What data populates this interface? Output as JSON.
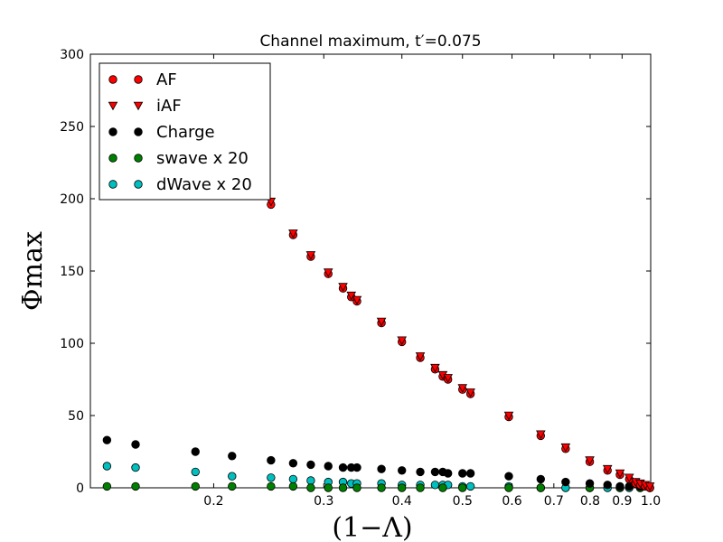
{
  "chart_data": {
    "type": "scatter",
    "title": "Channel maximum, t′=0.075",
    "xlabel": "(1−Λ)",
    "ylabel": "Φmax",
    "xscale": "log",
    "xlim": [
      0.127,
      1.0
    ],
    "ylim": [
      0,
      300
    ],
    "x_ticks": [
      0.2,
      0.3,
      0.4,
      0.5,
      0.6,
      0.7,
      0.8,
      0.9,
      1.0
    ],
    "x_tick_labels": [
      "0.2",
      "0.3",
      "0.4",
      "0.5",
      "0.6",
      "0.7",
      "0.8",
      "0.9",
      "1.0"
    ],
    "y_ticks": [
      0,
      50,
      100,
      150,
      200,
      250,
      300
    ],
    "y_tick_labels": [
      "0",
      "50",
      "100",
      "150",
      "200",
      "250",
      "300"
    ],
    "legend_position": "top-left",
    "series": [
      {
        "name": "AF",
        "marker": "circle",
        "color": "#ff0000",
        "points": [
          [
            0.247,
            196
          ],
          [
            0.268,
            175
          ],
          [
            0.286,
            160
          ],
          [
            0.305,
            148
          ],
          [
            0.322,
            138
          ],
          [
            0.332,
            132
          ],
          [
            0.339,
            129
          ],
          [
            0.371,
            114
          ],
          [
            0.4,
            101
          ],
          [
            0.428,
            90
          ],
          [
            0.452,
            82
          ],
          [
            0.465,
            77
          ],
          [
            0.474,
            75
          ],
          [
            0.5,
            68
          ],
          [
            0.515,
            65
          ],
          [
            0.593,
            49
          ],
          [
            0.667,
            36
          ],
          [
            0.731,
            27
          ],
          [
            0.799,
            18
          ],
          [
            0.853,
            12
          ],
          [
            0.893,
            9
          ],
          [
            0.924,
            6
          ],
          [
            0.946,
            3
          ],
          [
            0.962,
            2
          ],
          [
            0.98,
            1
          ],
          [
            0.997,
            0
          ]
        ]
      },
      {
        "name": "iAF",
        "marker": "triangle-down",
        "color": "#ff0000",
        "points": [
          [
            0.247,
            198
          ],
          [
            0.268,
            176
          ],
          [
            0.286,
            161
          ],
          [
            0.305,
            149
          ],
          [
            0.322,
            139
          ],
          [
            0.332,
            133
          ],
          [
            0.339,
            130
          ],
          [
            0.371,
            115
          ],
          [
            0.4,
            102
          ],
          [
            0.428,
            91
          ],
          [
            0.452,
            83
          ],
          [
            0.465,
            78
          ],
          [
            0.474,
            76
          ],
          [
            0.5,
            69
          ],
          [
            0.515,
            66
          ],
          [
            0.593,
            50
          ],
          [
            0.667,
            37
          ],
          [
            0.731,
            28
          ],
          [
            0.799,
            19
          ],
          [
            0.853,
            13
          ],
          [
            0.893,
            10
          ],
          [
            0.924,
            7
          ],
          [
            0.946,
            4
          ],
          [
            0.962,
            3
          ],
          [
            0.98,
            2
          ],
          [
            0.997,
            1
          ]
        ]
      },
      {
        "name": "Charge",
        "marker": "circle",
        "color": "#000000",
        "points": [
          [
            0.135,
            33
          ],
          [
            0.15,
            30
          ],
          [
            0.187,
            25
          ],
          [
            0.214,
            22
          ],
          [
            0.247,
            19
          ],
          [
            0.268,
            17
          ],
          [
            0.286,
            16
          ],
          [
            0.305,
            15
          ],
          [
            0.322,
            14
          ],
          [
            0.332,
            14
          ],
          [
            0.339,
            14
          ],
          [
            0.371,
            13
          ],
          [
            0.4,
            12
          ],
          [
            0.428,
            11
          ],
          [
            0.452,
            11
          ],
          [
            0.465,
            11
          ],
          [
            0.474,
            10
          ],
          [
            0.5,
            10
          ],
          [
            0.515,
            10
          ],
          [
            0.593,
            8
          ],
          [
            0.667,
            6
          ],
          [
            0.731,
            4
          ],
          [
            0.799,
            3
          ],
          [
            0.853,
            2
          ],
          [
            0.893,
            1
          ],
          [
            0.924,
            1
          ],
          [
            0.962,
            1
          ],
          [
            0.997,
            0
          ]
        ]
      },
      {
        "name": "swave x 20",
        "marker": "circle",
        "color": "#008000",
        "points": [
          [
            0.135,
            1
          ],
          [
            0.15,
            1
          ],
          [
            0.187,
            1
          ],
          [
            0.214,
            1
          ],
          [
            0.247,
            1
          ],
          [
            0.268,
            1
          ],
          [
            0.286,
            0
          ],
          [
            0.305,
            0
          ],
          [
            0.322,
            0
          ],
          [
            0.339,
            0
          ],
          [
            0.371,
            0
          ],
          [
            0.4,
            0
          ],
          [
            0.428,
            0
          ],
          [
            0.465,
            0
          ],
          [
            0.5,
            0
          ],
          [
            0.593,
            0
          ],
          [
            0.667,
            0
          ],
          [
            0.799,
            0
          ],
          [
            0.893,
            0
          ],
          [
            0.962,
            0
          ]
        ]
      },
      {
        "name": "dWave x 20",
        "marker": "circle",
        "color": "#00bfbf",
        "points": [
          [
            0.135,
            15
          ],
          [
            0.15,
            14
          ],
          [
            0.187,
            11
          ],
          [
            0.214,
            8
          ],
          [
            0.247,
            7
          ],
          [
            0.268,
            6
          ],
          [
            0.286,
            5
          ],
          [
            0.305,
            4
          ],
          [
            0.322,
            4
          ],
          [
            0.332,
            3
          ],
          [
            0.339,
            3
          ],
          [
            0.371,
            3
          ],
          [
            0.4,
            2
          ],
          [
            0.428,
            2
          ],
          [
            0.452,
            2
          ],
          [
            0.465,
            2
          ],
          [
            0.474,
            2
          ],
          [
            0.5,
            1
          ],
          [
            0.515,
            1
          ],
          [
            0.593,
            1
          ],
          [
            0.667,
            0
          ],
          [
            0.731,
            0
          ],
          [
            0.799,
            0
          ],
          [
            0.853,
            0
          ],
          [
            0.893,
            0
          ],
          [
            0.924,
            0
          ],
          [
            0.962,
            0
          ],
          [
            0.997,
            0
          ]
        ]
      }
    ]
  }
}
